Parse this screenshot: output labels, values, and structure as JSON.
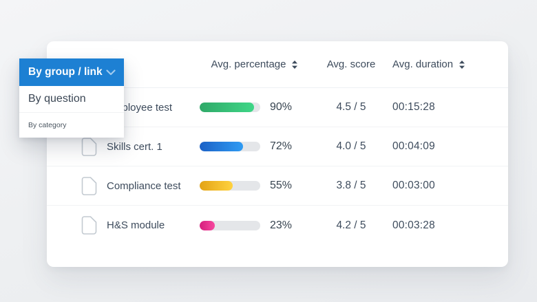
{
  "dropdown": {
    "selected_label": "By group / link",
    "header_color": "#1d80d3",
    "chevron_color": "#9fcaee",
    "options": [
      {
        "label": "By question",
        "size": "large"
      },
      {
        "label": "By category",
        "size": "small"
      }
    ]
  },
  "table": {
    "columns": [
      {
        "label": "Avg. percentage",
        "sortable": true
      },
      {
        "label": "Avg. score",
        "sortable": false
      },
      {
        "label": "Avg. duration",
        "sortable": true
      }
    ],
    "rows": [
      {
        "name": "Employee test",
        "percent": 90,
        "percent_label": "90%",
        "score": "4.5 / 5",
        "duration": "00:15:28",
        "bar_color_start": "#2fa968",
        "bar_color_end": "#3fd687"
      },
      {
        "name": "Skills cert. 1",
        "percent": 72,
        "percent_label": "72%",
        "score": "4.0 / 5",
        "duration": "00:04:09",
        "bar_color_start": "#1b61c6",
        "bar_color_end": "#2f9bf3"
      },
      {
        "name": "Compliance test",
        "percent": 55,
        "percent_label": "55%",
        "score": "3.8 / 5",
        "duration": "00:03:00",
        "bar_color_start": "#e3a315",
        "bar_color_end": "#ffd23f"
      },
      {
        "name": "H&S module",
        "percent": 23,
        "percent_label": "23%",
        "score": "4.2 / 5",
        "duration": "00:03:28",
        "bar_color_start": "#d51e7d",
        "bar_color_end": "#f7499f"
      }
    ]
  },
  "chart_data": {
    "type": "table",
    "title": "",
    "categories": [
      "Employee test",
      "Skills cert. 1",
      "Compliance test",
      "H&S module"
    ],
    "series": [
      {
        "name": "Avg. percentage",
        "values": [
          90,
          72,
          55,
          23
        ]
      },
      {
        "name": "Avg. score (out of 5)",
        "values": [
          4.5,
          4.0,
          3.8,
          4.2
        ]
      },
      {
        "name": "Avg. duration",
        "values": [
          "00:15:28",
          "00:04:09",
          "00:03:00",
          "00:03:28"
        ]
      }
    ]
  },
  "colors": {
    "text_dark": "#3d4b5c",
    "track_gray": "#e4e6e9",
    "card_bg": "#ffffff",
    "page_bg": "#edeff1"
  }
}
